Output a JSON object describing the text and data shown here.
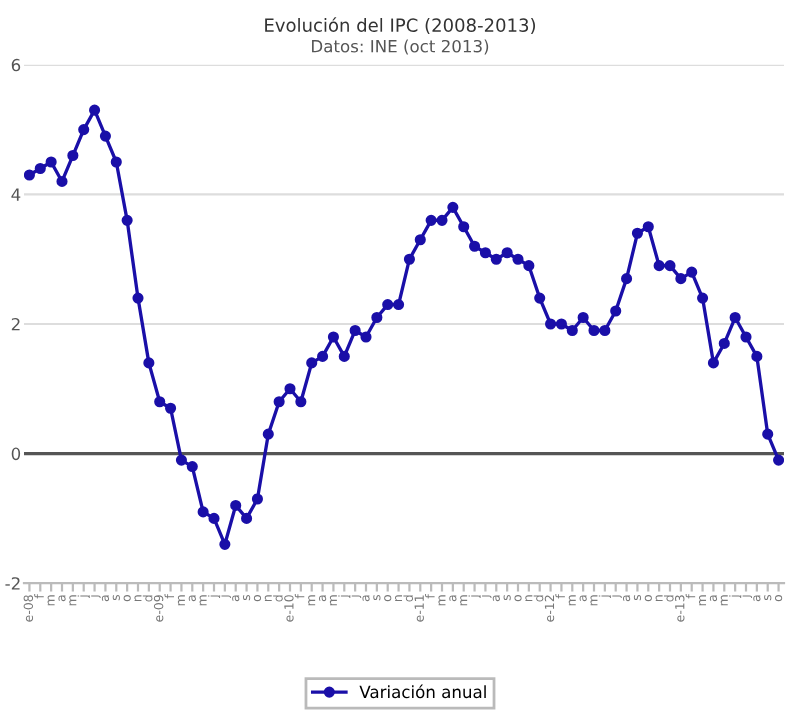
{
  "chart_data": {
    "type": "line",
    "title": "Evolución del IPC (2008-2013)",
    "subtitle": "Datos: INE (oct 2013)",
    "categories": [
      "e-08",
      "f",
      "m",
      "a",
      "m",
      "j",
      "j",
      "a",
      "s",
      "o",
      "n",
      "d",
      "e-09",
      "f",
      "m",
      "a",
      "m",
      "j",
      "j",
      "a",
      "s",
      "o",
      "n",
      "d",
      "e-10",
      "f",
      "m",
      "a",
      "m",
      "j",
      "j",
      "a",
      "s",
      "o",
      "n",
      "d",
      "e-11",
      "f",
      "m",
      "a",
      "m",
      "j",
      "j",
      "a",
      "s",
      "o",
      "n",
      "d",
      "e-12",
      "f",
      "m",
      "a",
      "m",
      "j",
      "j",
      "a",
      "s",
      "o",
      "n",
      "d",
      "e-13",
      "f",
      "m",
      "a",
      "m",
      "j",
      "j",
      "a",
      "s",
      "o"
    ],
    "series": [
      {
        "name": "Variación anual",
        "color": "#1a0fa8",
        "values": [
          4.3,
          4.4,
          4.5,
          4.2,
          4.6,
          5.0,
          5.3,
          4.9,
          4.5,
          3.6,
          2.4,
          1.4,
          0.8,
          0.7,
          -0.1,
          -0.2,
          -0.9,
          -1.0,
          -1.4,
          -0.8,
          -1.0,
          -0.7,
          0.3,
          0.8,
          1.0,
          0.8,
          1.4,
          1.5,
          1.8,
          1.5,
          1.9,
          1.8,
          2.1,
          2.3,
          2.3,
          3.0,
          3.3,
          3.6,
          3.6,
          3.8,
          3.5,
          3.2,
          3.1,
          3.0,
          3.1,
          3.0,
          2.9,
          2.4,
          2.0,
          2.0,
          1.9,
          2.1,
          1.9,
          1.9,
          2.2,
          2.7,
          3.4,
          3.5,
          2.9,
          2.9,
          2.7,
          2.8,
          2.4,
          1.4,
          1.7,
          2.1,
          1.8,
          1.5,
          0.3,
          -0.1
        ]
      }
    ],
    "ylim": [
      -2,
      6
    ],
    "yticks": [
      -2,
      0,
      2,
      4,
      6
    ],
    "grid": "y",
    "marker": "circle",
    "line_style": "solid",
    "legend": "bottom",
    "ref_lines": [
      {
        "axis": "y",
        "value": 0,
        "color": "#555555"
      }
    ]
  }
}
